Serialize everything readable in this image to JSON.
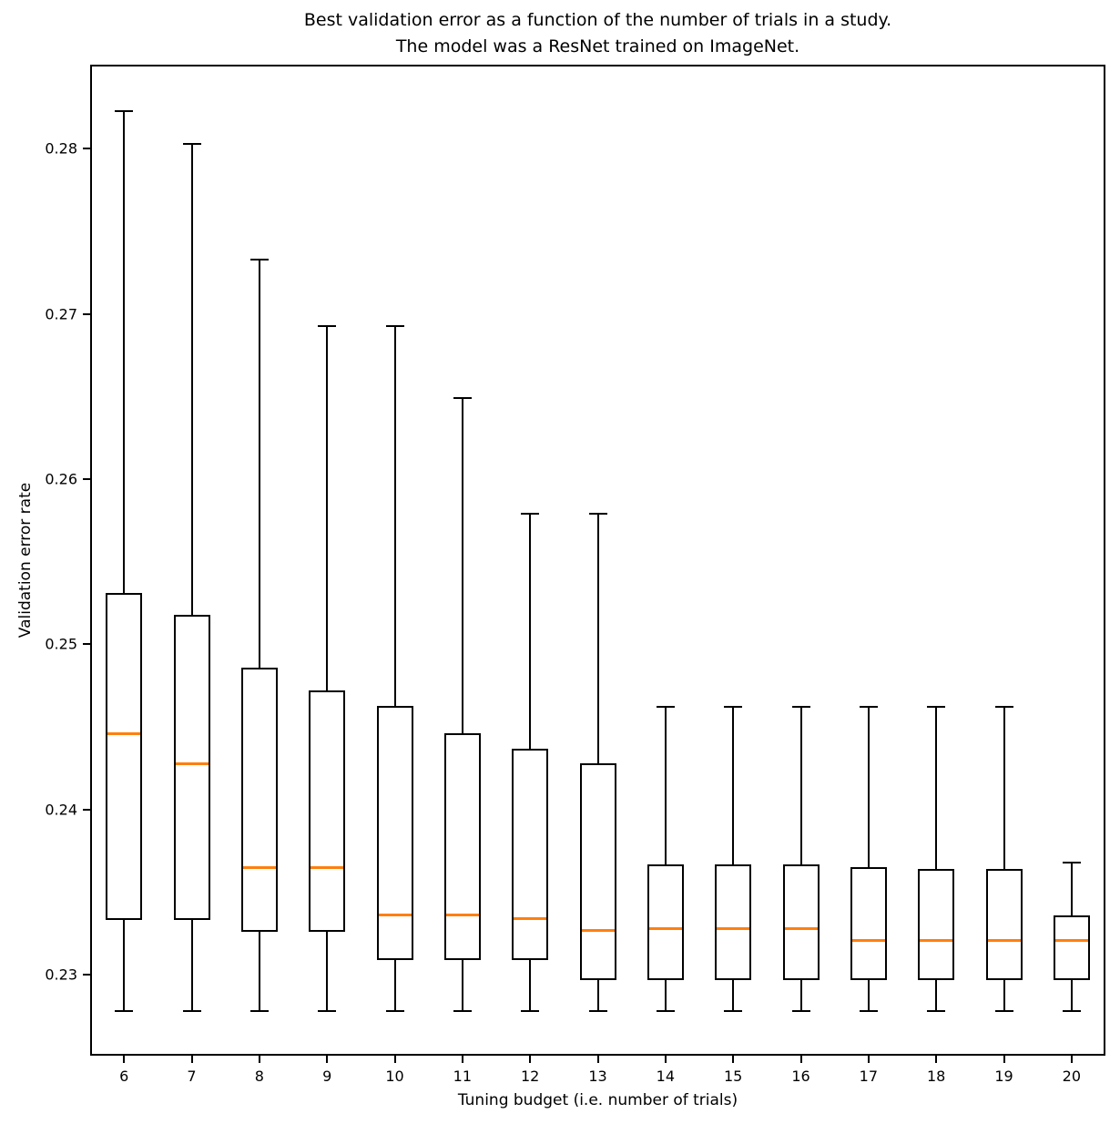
{
  "chart_data": {
    "type": "boxplot",
    "title": "Best validation error as a function of the number of trials in a study.\nThe model was a ResNet trained on ImageNet.",
    "xlabel": "Tuning budget (i.e. number of trials)",
    "ylabel": "Validation error rate",
    "ylim": [
      0.2251,
      0.2851
    ],
    "grid": false,
    "legend": "none",
    "colors": {
      "box_line": "#000000",
      "median_line": "#ff7f0e",
      "background": "#ffffff"
    },
    "yticks": [
      {
        "value": 0.23,
        "label": "0.23"
      },
      {
        "value": 0.24,
        "label": "0.24"
      },
      {
        "value": 0.25,
        "label": "0.25"
      },
      {
        "value": 0.26,
        "label": "0.26"
      },
      {
        "value": 0.27,
        "label": "0.27"
      },
      {
        "value": 0.28,
        "label": "0.28"
      }
    ],
    "categories": [
      "6",
      "7",
      "8",
      "9",
      "10",
      "11",
      "12",
      "13",
      "14",
      "15",
      "16",
      "17",
      "18",
      "19",
      "20"
    ],
    "boxes": [
      {
        "label": "6",
        "whislo": 0.2278,
        "q1": 0.2333,
        "med": 0.2446,
        "q3": 0.2531,
        "whishi": 0.2823
      },
      {
        "label": "7",
        "whislo": 0.2278,
        "q1": 0.2333,
        "med": 0.2428,
        "q3": 0.2518,
        "whishi": 0.2803
      },
      {
        "label": "8",
        "whislo": 0.2278,
        "q1": 0.2326,
        "med": 0.2365,
        "q3": 0.2486,
        "whishi": 0.2733
      },
      {
        "label": "9",
        "whislo": 0.2278,
        "q1": 0.2326,
        "med": 0.2365,
        "q3": 0.2472,
        "whishi": 0.2693
      },
      {
        "label": "10",
        "whislo": 0.2278,
        "q1": 0.2309,
        "med": 0.2336,
        "q3": 0.2463,
        "whishi": 0.2693
      },
      {
        "label": "11",
        "whislo": 0.2278,
        "q1": 0.2309,
        "med": 0.2336,
        "q3": 0.2446,
        "whishi": 0.2649
      },
      {
        "label": "12",
        "whislo": 0.2278,
        "q1": 0.2309,
        "med": 0.2334,
        "q3": 0.2437,
        "whishi": 0.2579
      },
      {
        "label": "13",
        "whislo": 0.2278,
        "q1": 0.2297,
        "med": 0.2327,
        "q3": 0.2428,
        "whishi": 0.2579
      },
      {
        "label": "14",
        "whislo": 0.2278,
        "q1": 0.2297,
        "med": 0.2328,
        "q3": 0.2367,
        "whishi": 0.2462
      },
      {
        "label": "15",
        "whislo": 0.2278,
        "q1": 0.2297,
        "med": 0.2328,
        "q3": 0.2367,
        "whishi": 0.2462
      },
      {
        "label": "16",
        "whislo": 0.2278,
        "q1": 0.2297,
        "med": 0.2328,
        "q3": 0.2367,
        "whishi": 0.2462
      },
      {
        "label": "17",
        "whislo": 0.2278,
        "q1": 0.2297,
        "med": 0.2321,
        "q3": 0.2365,
        "whishi": 0.2462
      },
      {
        "label": "18",
        "whislo": 0.2278,
        "q1": 0.2297,
        "med": 0.2321,
        "q3": 0.2364,
        "whishi": 0.2462
      },
      {
        "label": "19",
        "whislo": 0.2278,
        "q1": 0.2297,
        "med": 0.2321,
        "q3": 0.2364,
        "whishi": 0.2462
      },
      {
        "label": "20",
        "whislo": 0.2278,
        "q1": 0.2297,
        "med": 0.2321,
        "q3": 0.2336,
        "whishi": 0.2368
      }
    ]
  }
}
